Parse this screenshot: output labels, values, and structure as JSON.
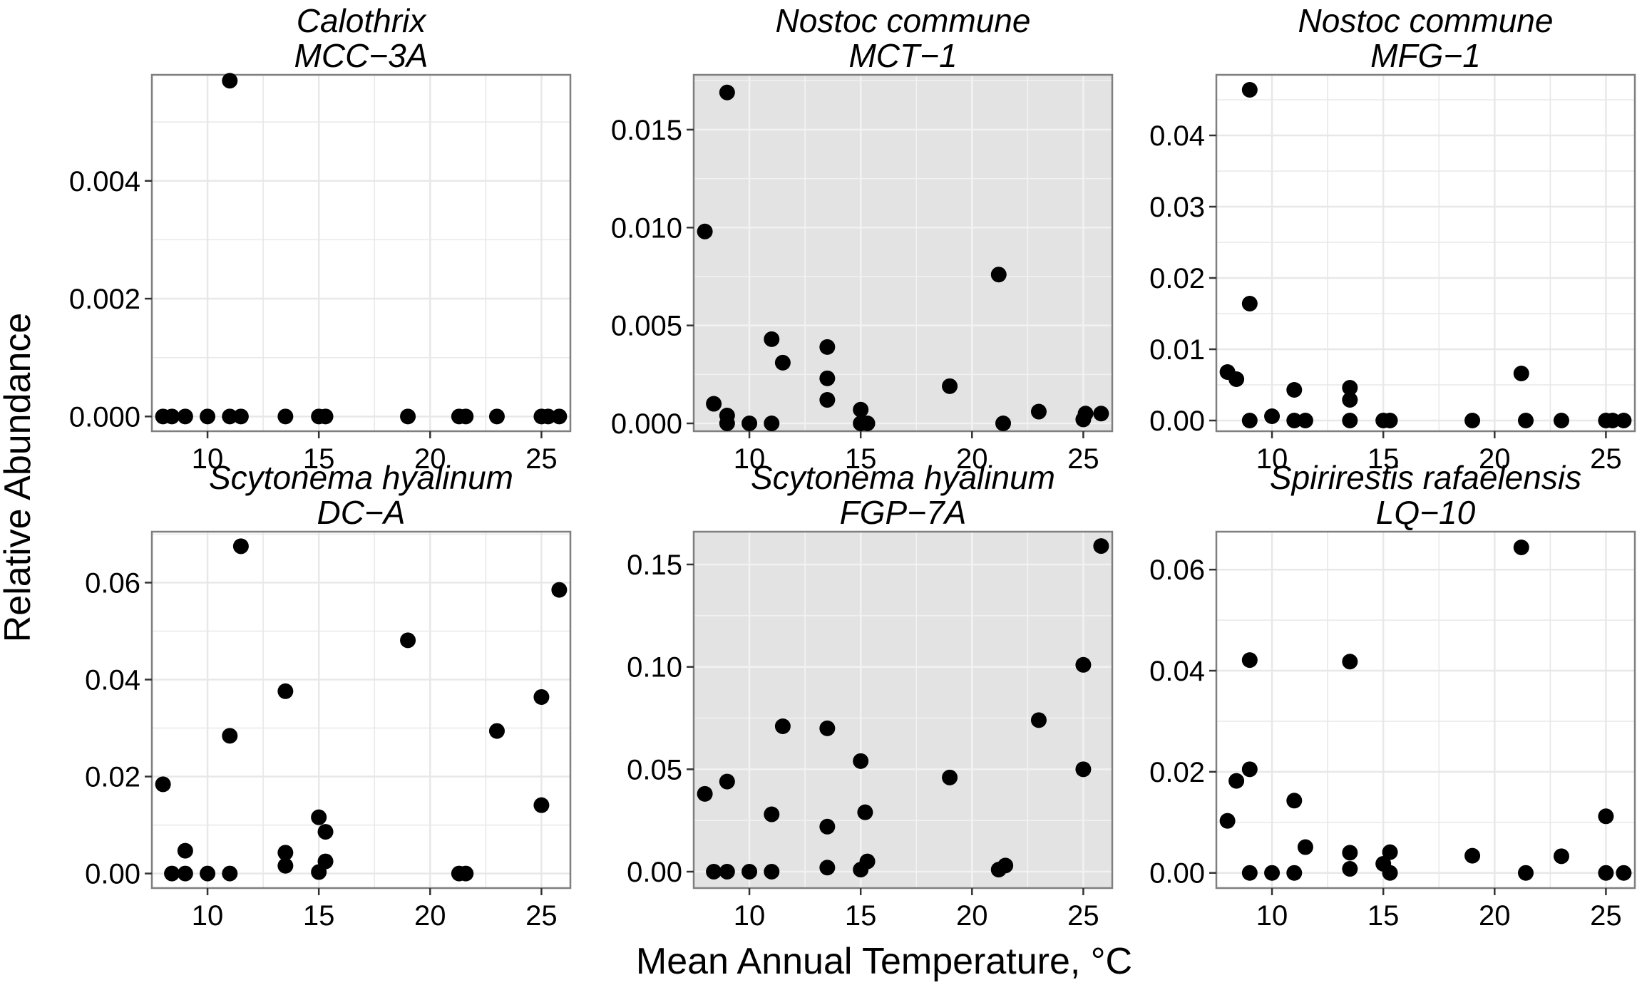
{
  "figure": {
    "xlabel": "Mean Annual Temperature, °C",
    "ylabel": "Relative Abundance"
  },
  "colors": {
    "point": "#000000",
    "shaded_panel_bg": "#e3e3e3",
    "plain_panel_bg": "#ffffff",
    "grid_on_white": "#e8e8e8",
    "grid_on_grey": "#f2f2f2",
    "panel_border": "#7f7f7f"
  },
  "chart_data": [
    {
      "type": "scatter",
      "title": [
        "Calothrix",
        "MCC−3A"
      ],
      "shaded": false,
      "xlim": [
        7.5,
        26.3
      ],
      "ylim": [
        -0.00025,
        0.0058
      ],
      "xticks": [
        "10",
        "15",
        "20",
        "25"
      ],
      "yticks": [
        "0.000",
        "0.002",
        "0.004"
      ],
      "grid": true,
      "points": [
        [
          8.0,
          0.0
        ],
        [
          8.4,
          0.0
        ],
        [
          9.0,
          0.0
        ],
        [
          10.0,
          0.0
        ],
        [
          11.0,
          0.0057
        ],
        [
          11.0,
          0.0
        ],
        [
          11.5,
          0.0
        ],
        [
          13.5,
          0.0
        ],
        [
          15.0,
          0.0
        ],
        [
          15.3,
          0.0
        ],
        [
          19.0,
          0.0
        ],
        [
          21.3,
          0.0
        ],
        [
          21.6,
          0.0
        ],
        [
          23.0,
          0.0
        ],
        [
          25.0,
          0.0
        ],
        [
          25.3,
          0.0
        ],
        [
          25.8,
          0.0
        ]
      ]
    },
    {
      "type": "scatter",
      "title": [
        "Nostoc commune",
        "MCT−1"
      ],
      "shaded": true,
      "xlim": [
        7.5,
        26.3
      ],
      "ylim": [
        -0.0004,
        0.0178
      ],
      "xticks": [
        "10",
        "15",
        "20",
        "25"
      ],
      "yticks": [
        "0.000",
        "0.005",
        "0.010",
        "0.015"
      ],
      "grid": true,
      "points": [
        [
          8.0,
          0.0098
        ],
        [
          8.4,
          0.001
        ],
        [
          9.0,
          0.0169
        ],
        [
          9.0,
          0.0004
        ],
        [
          9.0,
          0.0
        ],
        [
          10.0,
          0.0
        ],
        [
          11.0,
          0.0043
        ],
        [
          11.0,
          0.0
        ],
        [
          11.5,
          0.0031
        ],
        [
          13.5,
          0.0039
        ],
        [
          13.5,
          0.0023
        ],
        [
          13.5,
          0.0012
        ],
        [
          15.0,
          0.0007
        ],
        [
          15.0,
          0.0
        ],
        [
          15.3,
          0.0
        ],
        [
          19.0,
          0.0019
        ],
        [
          21.2,
          0.0076
        ],
        [
          21.4,
          0.0
        ],
        [
          23.0,
          0.0006
        ],
        [
          25.0,
          0.0002
        ],
        [
          25.1,
          0.0005
        ],
        [
          25.8,
          0.0005
        ]
      ]
    },
    {
      "type": "scatter",
      "title": [
        "Nostoc commune",
        "MFG−1"
      ],
      "shaded": false,
      "xlim": [
        7.5,
        26.3
      ],
      "ylim": [
        -0.0015,
        0.0485
      ],
      "xticks": [
        "10",
        "15",
        "20",
        "25"
      ],
      "yticks": [
        "0.00",
        "0.01",
        "0.02",
        "0.03",
        "0.04"
      ],
      "grid": true,
      "points": [
        [
          8.0,
          0.0068
        ],
        [
          8.4,
          0.0058
        ],
        [
          9.0,
          0.0464
        ],
        [
          9.0,
          0.0164
        ],
        [
          9.0,
          0.0
        ],
        [
          10.0,
          0.0006
        ],
        [
          11.0,
          0.0043
        ],
        [
          11.0,
          0.0
        ],
        [
          11.5,
          0.0
        ],
        [
          13.5,
          0.0046
        ],
        [
          13.5,
          0.0029
        ],
        [
          13.5,
          0.0
        ],
        [
          15.0,
          0.0
        ],
        [
          15.3,
          0.0
        ],
        [
          19.0,
          0.0
        ],
        [
          21.2,
          0.0066
        ],
        [
          21.4,
          0.0
        ],
        [
          23.0,
          0.0
        ],
        [
          25.0,
          0.0
        ],
        [
          25.3,
          0.0
        ],
        [
          25.8,
          0.0
        ]
      ]
    },
    {
      "type": "scatter",
      "title": [
        "Scytonema hyalinum",
        "DC−A"
      ],
      "shaded": false,
      "xlim": [
        7.5,
        26.3
      ],
      "ylim": [
        -0.003,
        0.0705
      ],
      "xticks": [
        "10",
        "15",
        "20",
        "25"
      ],
      "yticks": [
        "0.00",
        "0.02",
        "0.04",
        "0.06"
      ],
      "grid": true,
      "points": [
        [
          8.0,
          0.0184
        ],
        [
          8.4,
          0.0
        ],
        [
          9.0,
          0.0047
        ],
        [
          9.0,
          0.0
        ],
        [
          10.0,
          0.0
        ],
        [
          11.0,
          0.0284
        ],
        [
          11.0,
          0.0
        ],
        [
          11.5,
          0.0675
        ],
        [
          13.5,
          0.0376
        ],
        [
          13.5,
          0.0043
        ],
        [
          13.5,
          0.0016
        ],
        [
          15.0,
          0.0116
        ],
        [
          15.3,
          0.0086
        ],
        [
          15.3,
          0.0025
        ],
        [
          15.0,
          0.0003
        ],
        [
          19.0,
          0.0481
        ],
        [
          21.3,
          0.0
        ],
        [
          21.6,
          0.0
        ],
        [
          23.0,
          0.0294
        ],
        [
          25.0,
          0.0364
        ],
        [
          25.0,
          0.0141
        ],
        [
          25.8,
          0.0585
        ]
      ]
    },
    {
      "type": "scatter",
      "title": [
        "Scytonema hyalinum",
        "FGP−7A"
      ],
      "shaded": true,
      "xlim": [
        7.5,
        26.3
      ],
      "ylim": [
        -0.008,
        0.166
      ],
      "xticks": [
        "10",
        "15",
        "20",
        "25"
      ],
      "yticks": [
        "0.00",
        "0.05",
        "0.10",
        "0.15"
      ],
      "grid": true,
      "points": [
        [
          8.0,
          0.038
        ],
        [
          8.4,
          0.0
        ],
        [
          9.0,
          0.044
        ],
        [
          9.0,
          0.0
        ],
        [
          10.0,
          0.0
        ],
        [
          11.0,
          0.028
        ],
        [
          11.0,
          0.0
        ],
        [
          11.5,
          0.071
        ],
        [
          13.5,
          0.07
        ],
        [
          13.5,
          0.022
        ],
        [
          13.5,
          0.002
        ],
        [
          15.0,
          0.054
        ],
        [
          15.2,
          0.029
        ],
        [
          15.3,
          0.005
        ],
        [
          15.0,
          0.001
        ],
        [
          19.0,
          0.046
        ],
        [
          21.2,
          0.001
        ],
        [
          21.5,
          0.003
        ],
        [
          23.0,
          0.074
        ],
        [
          25.0,
          0.101
        ],
        [
          25.0,
          0.05
        ],
        [
          25.8,
          0.159
        ]
      ]
    },
    {
      "type": "scatter",
      "title": [
        "Spirirestis rafaelensis",
        "LQ−10"
      ],
      "shaded": false,
      "xlim": [
        7.5,
        26.3
      ],
      "ylim": [
        -0.003,
        0.0675
      ],
      "xticks": [
        "10",
        "15",
        "20",
        "25"
      ],
      "yticks": [
        "0.00",
        "0.02",
        "0.04",
        "0.06"
      ],
      "grid": true,
      "points": [
        [
          8.0,
          0.0103
        ],
        [
          8.4,
          0.0182
        ],
        [
          9.0,
          0.0421
        ],
        [
          9.0,
          0.0205
        ],
        [
          9.0,
          0.0
        ],
        [
          10.0,
          0.0
        ],
        [
          11.0,
          0.0143
        ],
        [
          11.0,
          0.0
        ],
        [
          11.5,
          0.0051
        ],
        [
          13.5,
          0.0418
        ],
        [
          13.5,
          0.004
        ],
        [
          13.5,
          0.0008
        ],
        [
          15.0,
          0.0018
        ],
        [
          15.3,
          0.0041
        ],
        [
          15.3,
          0.0
        ],
        [
          19.0,
          0.0034
        ],
        [
          21.2,
          0.0644
        ],
        [
          21.4,
          0.0
        ],
        [
          23.0,
          0.0033
        ],
        [
          25.0,
          0.0112
        ],
        [
          25.0,
          0.0
        ],
        [
          25.8,
          0.0
        ]
      ]
    }
  ]
}
